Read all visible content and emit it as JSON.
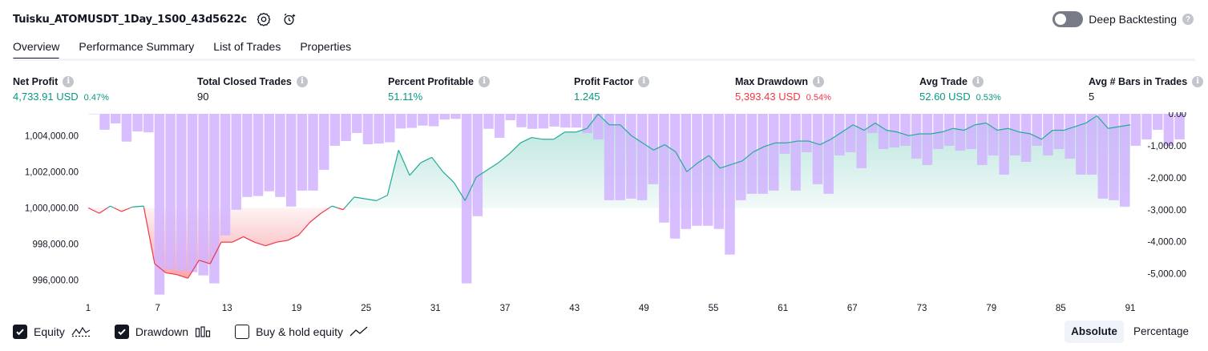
{
  "header": {
    "title": "Tuisku_ATOMUSDT_1Day_1S00_43d5622c",
    "deep_backtesting_label": "Deep Backtesting",
    "deep_backtesting_enabled": false
  },
  "tabs": [
    {
      "label": "Overview",
      "active": true
    },
    {
      "label": "Performance Summary",
      "active": false
    },
    {
      "label": "List of Trades",
      "active": false
    },
    {
      "label": "Properties",
      "active": false
    }
  ],
  "metrics": [
    {
      "label": "Net Profit",
      "value": "4,733.91 USD",
      "pct": "0.47%",
      "tone": "pos"
    },
    {
      "label": "Total Closed Trades",
      "value": "90",
      "pct": "",
      "tone": "plain"
    },
    {
      "label": "Percent Profitable",
      "value": "51.11%",
      "pct": "",
      "tone": "pos"
    },
    {
      "label": "Profit Factor",
      "value": "1.245",
      "pct": "",
      "tone": "pos"
    },
    {
      "label": "Max Drawdown",
      "value": "5,393.43 USD",
      "pct": "0.54%",
      "tone": "neg"
    },
    {
      "label": "Avg Trade",
      "value": "52.60 USD",
      "pct": "0.53%",
      "tone": "pos"
    },
    {
      "label": "Avg # Bars in Trades",
      "value": "5",
      "pct": "",
      "tone": "plain"
    }
  ],
  "legend": {
    "equity_label": "Equity",
    "equity_checked": true,
    "drawdown_label": "Drawdown",
    "drawdown_checked": true,
    "buyhold_label": "Buy & hold equity",
    "buyhold_checked": false
  },
  "mode": {
    "absolute_label": "Absolute",
    "percentage_label": "Percentage",
    "active": "Absolute"
  },
  "colors": {
    "positive": "#089981",
    "negative": "#f23645",
    "equity_line_pos": "#22ab94",
    "equity_line_neg": "#f23645",
    "drawdown_bar": "#d1b3ff",
    "axis_text": "#131722"
  },
  "chart_data": {
    "type": "area",
    "x_ticks": [
      "1",
      "7",
      "13",
      "19",
      "25",
      "31",
      "37",
      "43",
      "49",
      "55",
      "61",
      "67",
      "73",
      "79",
      "85",
      "91"
    ],
    "x_range": [
      1,
      91
    ],
    "y_left_ticks": [
      "1,004,000.00",
      "1,002,000.00",
      "1,000,000.00",
      "998,000.00",
      "996,000.00"
    ],
    "y_left_range": [
      995000,
      1005300
    ],
    "y_right_ticks": [
      "0.00",
      "-1,000.00",
      "-2,000.00",
      "-3,000.00",
      "-4,000.00",
      "-5,000.00"
    ],
    "y_right_range": [
      -5760,
      50
    ],
    "baseline": 1000000,
    "series": [
      {
        "name": "Equity",
        "values": [
          1000000,
          999700,
          1000100,
          999800,
          1000050,
          1000100,
          996900,
          996400,
          996300,
          996100,
          997100,
          996900,
          998100,
          998100,
          998400,
          998100,
          997900,
          998100,
          998200,
          998500,
          999200,
          999700,
          1000100,
          999900,
          1000600,
          1000500,
          1000400,
          1000700,
          1003200,
          1001800,
          1002500,
          1002800,
          1002000,
          1001400,
          1000400,
          1001700,
          1002100,
          1002500,
          1003000,
          1003600,
          1003900,
          1003800,
          1003800,
          1004200,
          1004200,
          1004400,
          1005200,
          1004600,
          1004600,
          1004000,
          1003600,
          1003200,
          1003500,
          1003100,
          1002000,
          1002500,
          1002900,
          1002200,
          1002400,
          1002600,
          1003100,
          1003400,
          1003600,
          1003600,
          1003700,
          1003700,
          1003500,
          1003800,
          1004200,
          1004600,
          1004300,
          1004700,
          1004300,
          1004200,
          1004000,
          1004100,
          1004100,
          1004200,
          1004400,
          1004300,
          1004600,
          1004700,
          1004300,
          1004400,
          1004200,
          1004100,
          1003800,
          1004300,
          1004300,
          1004500,
          1004700,
          1005100,
          1004400,
          1004500,
          1004600
        ]
      },
      {
        "name": "Drawdown",
        "values": [
          0,
          -500,
          -300,
          -870,
          -550,
          -580,
          -5650,
          -4850,
          -4900,
          -4950,
          -5050,
          -5300,
          -3800,
          -3000,
          -2600,
          -2570,
          -2420,
          -2600,
          -2900,
          -2400,
          -2400,
          -1750,
          -1000,
          -850,
          -600,
          -950,
          -930,
          -890,
          -460,
          -440,
          -370,
          -390,
          -180,
          -160,
          -5300,
          -3200,
          -470,
          -750,
          -200,
          -420,
          -470,
          -460,
          -400,
          -430,
          -430,
          -600,
          -800,
          -2700,
          -2700,
          -2650,
          -2700,
          -2200,
          -3400,
          -3900,
          -3600,
          -3500,
          -3500,
          -3600,
          -4400,
          -2700,
          -2500,
          -2500,
          -2400,
          -1250,
          -2400,
          -1200,
          -2200,
          -2500,
          -1300,
          -1200,
          -1700,
          -600,
          -1100,
          -1050,
          -1000,
          -1400,
          -1600,
          -1100,
          -1000,
          -1150,
          -1100,
          -1600,
          -1300,
          -1900,
          -1300,
          -1500,
          -1000,
          -1300,
          -1100,
          -1400,
          -1900,
          -1900,
          -2650,
          -2700,
          -2900,
          -1000,
          -800,
          -500,
          -1000,
          -800
        ]
      }
    ]
  }
}
